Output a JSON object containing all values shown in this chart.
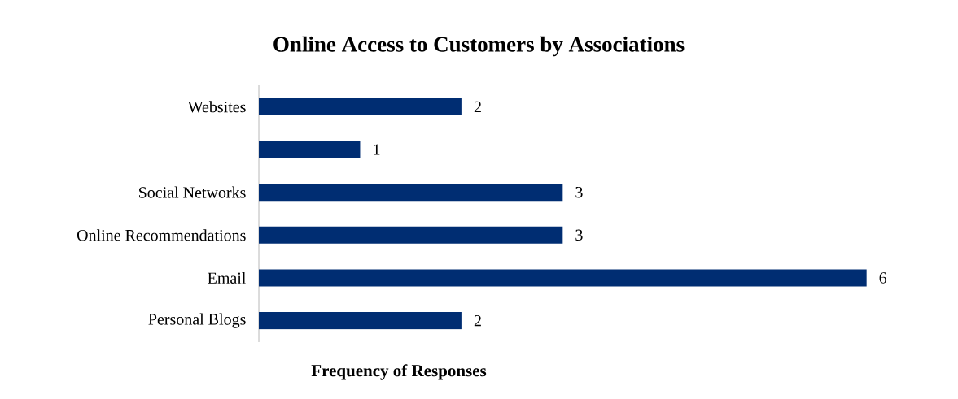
{
  "chart_data": {
    "type": "bar",
    "orientation": "horizontal",
    "tick_labels": "y",
    "data_labels": true,
    "title": "Online Access to Customers by Associations",
    "xlabel": "Frequency of Responses",
    "categories": [
      "Websites",
      null,
      "Social Networks",
      "Online Recommendations",
      "Email",
      "Personal Blogs"
    ],
    "values": [
      2,
      1,
      3,
      3,
      6,
      2
    ],
    "color": "#002d72"
  }
}
